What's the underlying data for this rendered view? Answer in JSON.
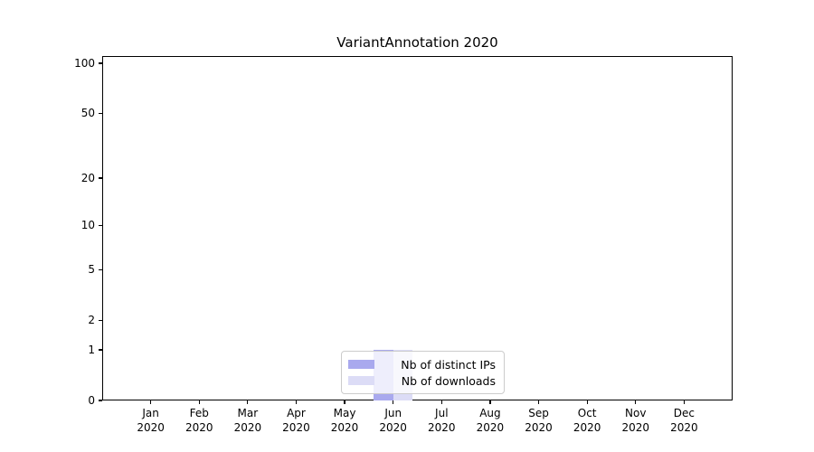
{
  "title": "VariantAnnotation 2020",
  "chart_data": {
    "type": "bar",
    "title": "VariantAnnotation 2020",
    "categories": [
      {
        "line1": "Jan",
        "line2": "2020"
      },
      {
        "line1": "Feb",
        "line2": "2020"
      },
      {
        "line1": "Mar",
        "line2": "2020"
      },
      {
        "line1": "Apr",
        "line2": "2020"
      },
      {
        "line1": "May",
        "line2": "2020"
      },
      {
        "line1": "Jun",
        "line2": "2020"
      },
      {
        "line1": "Jul",
        "line2": "2020"
      },
      {
        "line1": "Aug",
        "line2": "2020"
      },
      {
        "line1": "Sep",
        "line2": "2020"
      },
      {
        "line1": "Oct",
        "line2": "2020"
      },
      {
        "line1": "Nov",
        "line2": "2020"
      },
      {
        "line1": "Dec",
        "line2": "2020"
      }
    ],
    "series": [
      {
        "name": "Nb of distinct IPs",
        "color": "#a9a9ee",
        "values": [
          0,
          0,
          0,
          0,
          0,
          1,
          0,
          0,
          0,
          0,
          0,
          0
        ]
      },
      {
        "name": "Nb of downloads",
        "color": "#dcdcf6",
        "values": [
          0,
          0,
          0,
          0,
          0,
          1,
          0,
          0,
          0,
          0,
          0,
          0
        ]
      }
    ],
    "yscale": "log1p",
    "ylim": [
      0,
      110
    ],
    "yticks": [
      0,
      1,
      2,
      5,
      10,
      20,
      50,
      100
    ],
    "major_gridlines": [
      1,
      10,
      100
    ],
    "minor_gridlines": [
      2,
      3,
      4,
      5,
      6,
      7,
      8,
      9,
      20,
      30,
      40,
      50,
      60,
      70,
      80,
      90
    ],
    "grid": "horizontal",
    "legend_position": "bottom-center",
    "xlabel": "",
    "ylabel": ""
  },
  "colors": {
    "bar_distinct_ips": "#a9a9ee",
    "bar_downloads": "#dcdcf6",
    "major_gridline": "#c9c9c9",
    "minor_gridline": "#ececec",
    "axis_frame": "#000000",
    "legend_border": "#cccccc"
  }
}
